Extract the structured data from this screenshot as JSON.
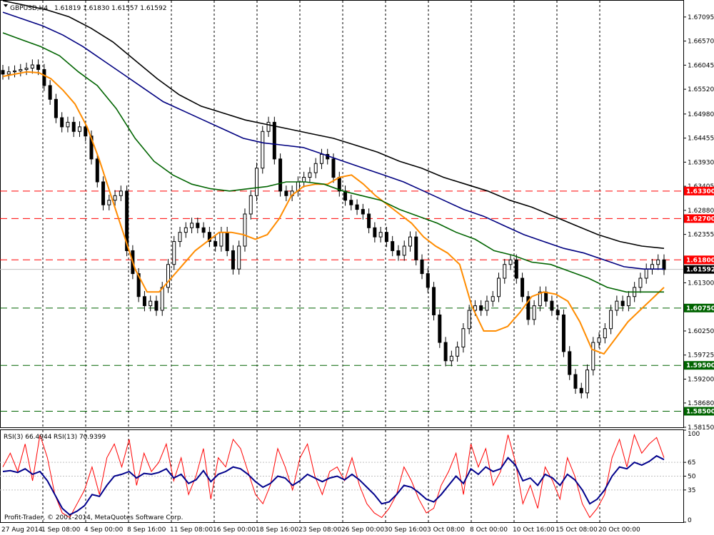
{
  "header": {
    "symbol_label": "GBPUSD,H4",
    "ohlc_label": "1.61819 1.61830 1.61557 1.61592"
  },
  "rsi_header": {
    "rsi3_label": "RSI(3) 66.4944",
    "rsi13_label": "RSI(13) 70.9399"
  },
  "footer": {
    "copyright": "Profit-Trader, © 2001-2014, MetaQuotes Software Corp."
  },
  "colors": {
    "price_candles": "#000000",
    "ema_fast": "#ff8c00",
    "ema_mid": "#006400",
    "ema_slow": "#000080",
    "ema_long": "#000000",
    "resistance": "#ff0000",
    "support": "#006400",
    "current_price": "#000000",
    "rsi3": "#ff0000",
    "rsi13": "#00008b"
  },
  "chart_data": [
    {
      "type": "line",
      "panel": "price",
      "x_labels": [
        "27 Aug 2014",
        "1 Sep 08:00",
        "4 Sep 00:00",
        "8 Sep 16:00",
        "11 Sep 08:00",
        "16 Sep 00:00",
        "18 Sep 16:00",
        "23 Sep 08:00",
        "26 Sep 00:00",
        "30 Sep 16:00",
        "3 Oct 08:00",
        "8 Oct 00:00",
        "10 Oct 16:00",
        "15 Oct 08:00",
        "20 Oct 00:00"
      ],
      "y_ticks": [
        "1.67095",
        "1.66570",
        "1.66045",
        "1.65520",
        "1.64980",
        "1.64455",
        "1.63930",
        "1.63405",
        "1.62880",
        "1.62355",
        "1.61830",
        "1.61300",
        "1.60775",
        "1.60250",
        "1.59725",
        "1.59200",
        "1.58680",
        "1.58150"
      ],
      "ylim": [
        1.5815,
        1.6745
      ],
      "levels": [
        {
          "value": 1.633,
          "label": "1.63300",
          "kind": "resistance"
        },
        {
          "value": 1.627,
          "label": "1.62700",
          "kind": "resistance"
        },
        {
          "value": 1.618,
          "label": "1.61800",
          "kind": "resistance"
        },
        {
          "value": 1.6075,
          "label": "1.60750",
          "kind": "support"
        },
        {
          "value": 1.595,
          "label": "1.59500",
          "kind": "support"
        },
        {
          "value": 1.585,
          "label": "1.58500",
          "kind": "support"
        }
      ],
      "current_price": {
        "value": 1.61592,
        "label": "1.61592"
      },
      "close_series": [
        1.6585,
        1.659,
        1.6592,
        1.6595,
        1.6598,
        1.6605,
        1.6595,
        1.656,
        1.653,
        1.649,
        1.647,
        1.648,
        1.646,
        1.647,
        1.645,
        1.64,
        1.635,
        1.63,
        1.631,
        1.632,
        1.633,
        1.62,
        1.615,
        1.61,
        1.608,
        1.609,
        1.607,
        1.612,
        1.617,
        1.622,
        1.624,
        1.625,
        1.626,
        1.625,
        1.624,
        1.622,
        1.621,
        1.624,
        1.62,
        1.616,
        1.621,
        1.628,
        1.632,
        1.638,
        1.646,
        1.648,
        1.64,
        1.633,
        1.632,
        1.633,
        1.635,
        1.636,
        1.637,
        1.639,
        1.641,
        1.64,
        1.636,
        1.633,
        1.631,
        1.63,
        1.629,
        1.628,
        1.625,
        1.623,
        1.624,
        1.622,
        1.62,
        1.619,
        1.621,
        1.623,
        1.618,
        1.615,
        1.612,
        1.606,
        1.6,
        1.596,
        1.597,
        1.599,
        1.603,
        1.607,
        1.608,
        1.607,
        1.609,
        1.61,
        1.614,
        1.617,
        1.618,
        1.614,
        1.61,
        1.605,
        1.608,
        1.611,
        1.609,
        1.607,
        1.606,
        1.598,
        1.593,
        1.59,
        1.589,
        1.594,
        1.6,
        1.601,
        1.603,
        1.607,
        1.609,
        1.608,
        1.61,
        1.612,
        1.614,
        1.616,
        1.617,
        1.618,
        1.6159
      ],
      "series": [
        {
          "kind": "ema_fast",
          "values": [
            1.658,
            1.6585,
            1.659,
            1.6588,
            1.6575,
            1.655,
            1.652,
            1.647,
            1.64,
            1.632,
            1.624,
            1.616,
            1.611,
            1.611,
            1.614,
            1.617,
            1.62,
            1.622,
            1.624,
            1.624,
            1.6235,
            1.6225,
            1.6235,
            1.627,
            1.632,
            1.634,
            1.6345,
            1.6345,
            1.636,
            1.6365,
            1.6345,
            1.632,
            1.63,
            1.628,
            1.626,
            1.623,
            1.621,
            1.6195,
            1.617,
            1.608,
            1.6025,
            1.6025,
            1.6035,
            1.6065,
            1.61,
            1.611,
            1.6105,
            1.609,
            1.6045,
            1.5985,
            1.5975,
            1.601,
            1.6045,
            1.607,
            1.6095,
            1.612
          ]
        },
        {
          "kind": "ema_mid",
          "values": [
            1.6675,
            1.666,
            1.6645,
            1.6625,
            1.659,
            1.656,
            1.651,
            1.6445,
            1.6395,
            1.6365,
            1.6345,
            1.6335,
            1.633,
            1.6335,
            1.634,
            1.635,
            1.635,
            1.6345,
            1.633,
            1.632,
            1.631,
            1.629,
            1.6275,
            1.626,
            1.624,
            1.6225,
            1.62,
            1.619,
            1.6175,
            1.617,
            1.6155,
            1.614,
            1.612,
            1.611,
            1.611,
            1.611
          ]
        },
        {
          "kind": "ema_slow",
          "values": [
            1.672,
            1.6705,
            1.669,
            1.667,
            1.6645,
            1.6615,
            1.6585,
            1.6555,
            1.6525,
            1.6505,
            1.6485,
            1.6465,
            1.6445,
            1.6435,
            1.643,
            1.6425,
            1.641,
            1.6395,
            1.638,
            1.6365,
            1.635,
            1.633,
            1.631,
            1.629,
            1.6275,
            1.6255,
            1.6235,
            1.622,
            1.6205,
            1.6195,
            1.618,
            1.6165,
            1.616,
            1.616
          ]
        },
        {
          "kind": "ema_long",
          "values": [
            1.6745,
            1.6735,
            1.6725,
            1.671,
            1.6685,
            1.6655,
            1.6615,
            1.6575,
            1.654,
            1.6515,
            1.65,
            1.6485,
            1.6475,
            1.6465,
            1.6455,
            1.6445,
            1.643,
            1.6415,
            1.6395,
            1.638,
            1.636,
            1.6345,
            1.633,
            1.631,
            1.6295,
            1.6275,
            1.6255,
            1.6235,
            1.622,
            1.621,
            1.6205
          ]
        }
      ]
    },
    {
      "type": "line",
      "panel": "rsi",
      "y_ticks": [
        "100",
        "65",
        "50",
        "35",
        "0"
      ],
      "ylim": [
        0,
        100
      ],
      "levels": [
        65,
        50,
        35
      ],
      "series": [
        {
          "name": "RSI(3)",
          "kind": "rsi3",
          "values": [
            60,
            75,
            55,
            85,
            45,
            95,
            70,
            30,
            10,
            5,
            20,
            35,
            60,
            30,
            70,
            85,
            60,
            90,
            40,
            75,
            55,
            65,
            85,
            45,
            70,
            30,
            50,
            80,
            25,
            70,
            60,
            90,
            80,
            55,
            30,
            20,
            40,
            80,
            60,
            35,
            70,
            85,
            50,
            30,
            55,
            60,
            45,
            70,
            40,
            20,
            10,
            5,
            15,
            30,
            60,
            45,
            25,
            10,
            15,
            40,
            55,
            75,
            30,
            85,
            60,
            80,
            40,
            55,
            95,
            65,
            20,
            40,
            15,
            60,
            45,
            25,
            70,
            50,
            20,
            5,
            15,
            30,
            70,
            90,
            60,
            95,
            75,
            85,
            92,
            70
          ]
        },
        {
          "name": "RSI(13)",
          "kind": "rsi13",
          "values": [
            55,
            56,
            54,
            58,
            52,
            55,
            45,
            30,
            15,
            8,
            12,
            18,
            30,
            28,
            40,
            50,
            52,
            55,
            48,
            53,
            52,
            54,
            58,
            48,
            52,
            42,
            46,
            56,
            44,
            52,
            55,
            60,
            58,
            52,
            44,
            38,
            42,
            50,
            48,
            40,
            45,
            52,
            48,
            44,
            48,
            50,
            46,
            52,
            46,
            38,
            30,
            20,
            22,
            30,
            40,
            38,
            32,
            25,
            22,
            30,
            40,
            50,
            42,
            58,
            52,
            60,
            55,
            58,
            70,
            62,
            45,
            48,
            40,
            52,
            48,
            40,
            52,
            46,
            35,
            20,
            25,
            35,
            50,
            60,
            58,
            65,
            62,
            66,
            72,
            68
          ]
        }
      ]
    }
  ]
}
